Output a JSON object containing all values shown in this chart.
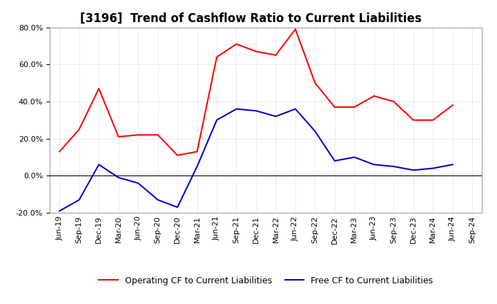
{
  "title": "[3196]  Trend of Cashflow Ratio to Current Liabilities",
  "x_labels": [
    "Jun-19",
    "Sep-19",
    "Dec-19",
    "Mar-20",
    "Jun-20",
    "Sep-20",
    "Dec-20",
    "Mar-21",
    "Jun-21",
    "Sep-21",
    "Dec-21",
    "Mar-22",
    "Jun-22",
    "Sep-22",
    "Dec-22",
    "Mar-23",
    "Jun-23",
    "Sep-23",
    "Dec-23",
    "Mar-24",
    "Jun-24",
    "Sep-24"
  ],
  "operating_cf": [
    0.13,
    0.25,
    0.47,
    0.21,
    0.22,
    0.22,
    0.11,
    0.13,
    0.64,
    0.71,
    0.67,
    0.65,
    0.79,
    0.5,
    0.37,
    0.37,
    0.43,
    0.4,
    0.3,
    0.3,
    0.38,
    null
  ],
  "free_cf": [
    -0.19,
    -0.13,
    0.06,
    -0.01,
    -0.04,
    -0.13,
    -0.17,
    0.05,
    0.3,
    0.36,
    0.35,
    0.32,
    0.36,
    0.24,
    0.08,
    0.1,
    0.06,
    0.05,
    0.03,
    0.04,
    0.06,
    null
  ],
  "ylim": [
    -0.2,
    0.8
  ],
  "yticks": [
    -0.2,
    0.0,
    0.2,
    0.4,
    0.6,
    0.8
  ],
  "operating_color": "#ff0000",
  "free_color": "#0000cc",
  "background_color": "#ffffff",
  "grid_color": "#b0b0b0",
  "legend_operating": "Operating CF to Current Liabilities",
  "legend_free": "Free CF to Current Liabilities",
  "title_fontsize": 12,
  "tick_fontsize": 8,
  "legend_fontsize": 9
}
